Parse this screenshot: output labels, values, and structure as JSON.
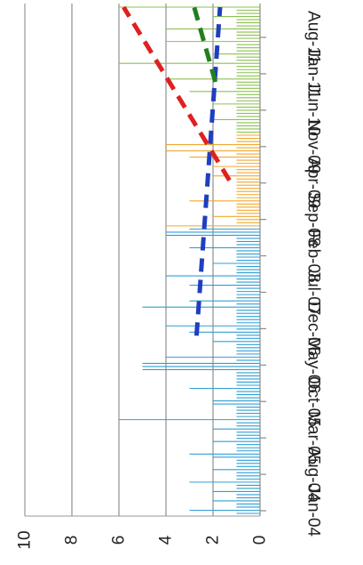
{
  "chart_data": {
    "type": "bar",
    "orientation": "rotated-180",
    "title": "",
    "xlabel": "",
    "ylabel": "",
    "ylim": [
      0,
      10
    ],
    "y_ticks": [
      "0",
      "2",
      "4",
      "6",
      "8",
      "10"
    ],
    "x_tick_labels": [
      "Jan-04",
      "Aug-04",
      "Mar-05",
      "Oct-05",
      "May-06",
      "Dec-06",
      "Jul-07",
      "Feb-08",
      "Sep-08",
      "Apr-09",
      "Nov-09",
      "Jun-10",
      "Jan-11",
      "Aug-11"
    ],
    "grid": true,
    "legend": "none",
    "series": [
      {
        "color": "#2e9fd4",
        "values": [
          1,
          3,
          1,
          1,
          2,
          1,
          1,
          2,
          1,
          1,
          3,
          1,
          1,
          1,
          2,
          1,
          1,
          1,
          2,
          3,
          1,
          1,
          1,
          2,
          1,
          1,
          1,
          2,
          1,
          1,
          6,
          1,
          1,
          1,
          1,
          2,
          2,
          1,
          1,
          1,
          3,
          1,
          1,
          1,
          1,
          1,
          5,
          5,
          5,
          1,
          4,
          1,
          1,
          1,
          1,
          2,
          1,
          1,
          3,
          1,
          4,
          1,
          1,
          1,
          1,
          1,
          5,
          1,
          3,
          1,
          1,
          1,
          1,
          3,
          1,
          1,
          4,
          1,
          1,
          1,
          2,
          1,
          1,
          1,
          1,
          3,
          1,
          1,
          1,
          4,
          4,
          3
        ]
      },
      {
        "color": "#f0a830",
        "values": [
          4,
          1,
          1,
          2,
          1,
          1,
          1,
          1,
          3,
          1,
          1,
          1,
          1,
          1,
          1,
          1,
          2,
          1,
          1,
          2,
          1,
          1,
          3,
          1,
          4,
          1,
          4,
          1,
          1,
          1
        ]
      },
      {
        "color": "#8cc152",
        "values": [
          1,
          1,
          1,
          1,
          2,
          1,
          1,
          1,
          1,
          2,
          1,
          1,
          1,
          3,
          1,
          1,
          1,
          4,
          1,
          1,
          1,
          1,
          6,
          1,
          1,
          2,
          1,
          1,
          1,
          4,
          1,
          1,
          1,
          4,
          1,
          1,
          1,
          2,
          1,
          1,
          6
        ]
      }
    ],
    "trendlines": [
      {
        "color": "#1f3fbf",
        "from": 0.352,
        "to": 0.993,
        "y_start": 2.7,
        "y_end": 1.7
      },
      {
        "color": "#e02020",
        "from": 0.655,
        "to": 0.993,
        "y_start": 1.3,
        "y_end": 5.8
      },
      {
        "color": "#208020",
        "from": 0.847,
        "to": 0.993,
        "y_start": 1.9,
        "y_end": 2.8
      }
    ]
  }
}
